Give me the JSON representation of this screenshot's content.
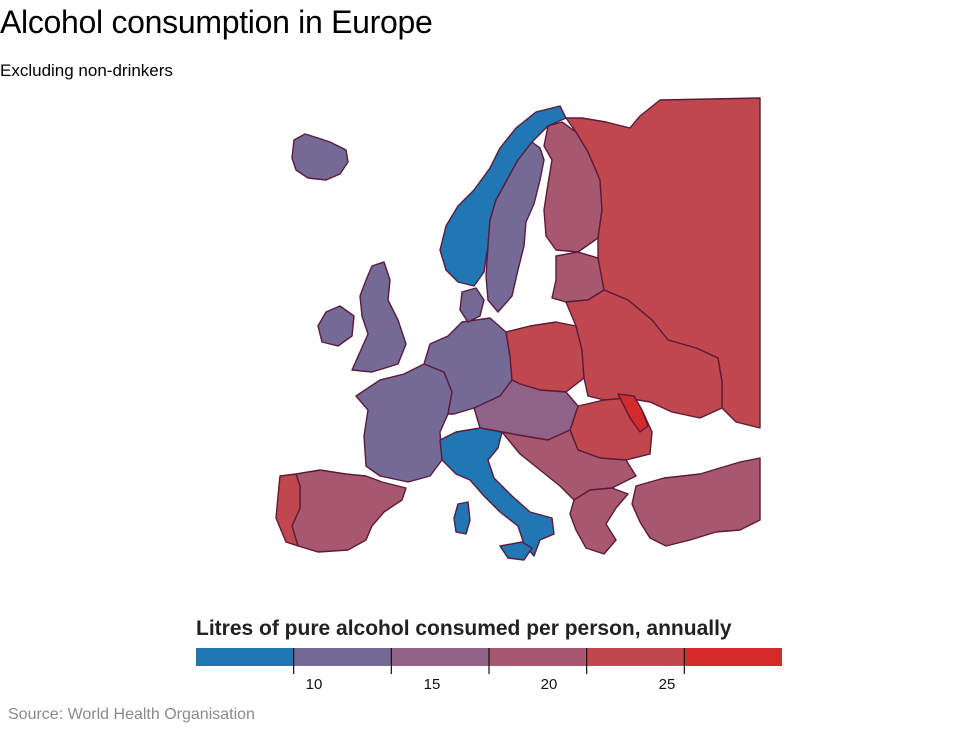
{
  "header": {
    "title": "Alcohol consumption in Europe",
    "subtitle": "Excluding non-drinkers"
  },
  "legend": {
    "title": "Litres of pure alcohol consumed per person, annually",
    "ticks": [
      "10",
      "15",
      "20",
      "25"
    ],
    "bins": [
      {
        "color": "#2077b4"
      },
      {
        "color": "#756a96"
      },
      {
        "color": "#8f6388"
      },
      {
        "color": "#a7586f"
      },
      {
        "color": "#c0474e"
      },
      {
        "color": "#d42a2c"
      }
    ]
  },
  "source": "Source: World Health Organisation",
  "map": {
    "regions": [
      {
        "id": "iceland",
        "color": "#756a96"
      },
      {
        "id": "norway",
        "color": "#2077b4"
      },
      {
        "id": "sweden",
        "color": "#756a96"
      },
      {
        "id": "finland",
        "color": "#a7586f"
      },
      {
        "id": "russia",
        "color": "#c0474e"
      },
      {
        "id": "baltics",
        "color": "#a7586f"
      },
      {
        "id": "uk",
        "color": "#756a96"
      },
      {
        "id": "ireland",
        "color": "#756a96"
      },
      {
        "id": "france",
        "color": "#756a96"
      },
      {
        "id": "benelux-germany",
        "color": "#756a96"
      },
      {
        "id": "denmark",
        "color": "#756a96"
      },
      {
        "id": "poland",
        "color": "#c0474e"
      },
      {
        "id": "belarus-ukraine",
        "color": "#c0474e"
      },
      {
        "id": "romania",
        "color": "#c0474e"
      },
      {
        "id": "moldova",
        "color": "#d42a2c"
      },
      {
        "id": "austria-czech",
        "color": "#8f6388"
      },
      {
        "id": "balkans",
        "color": "#a7586f"
      },
      {
        "id": "italy",
        "color": "#2077b4"
      },
      {
        "id": "spain",
        "color": "#a7586f"
      },
      {
        "id": "portugal",
        "color": "#c0474e"
      },
      {
        "id": "greece",
        "color": "#a7586f"
      },
      {
        "id": "turkey",
        "color": "#a7586f"
      }
    ]
  }
}
